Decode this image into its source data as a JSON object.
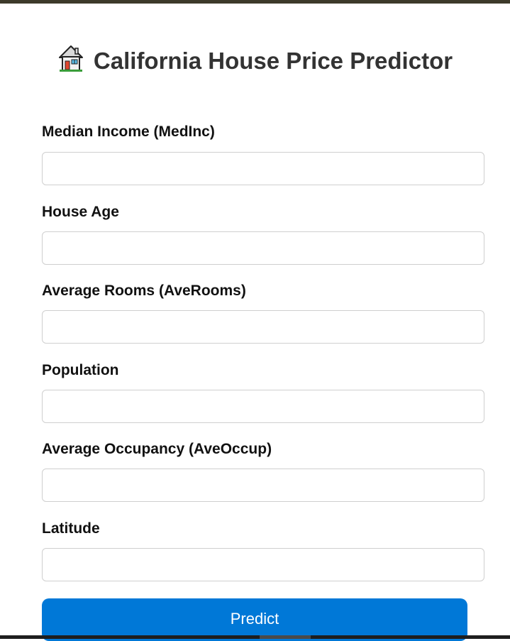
{
  "page": {
    "title": "California House Price Predictor",
    "title_icon": "house-emoji"
  },
  "form": {
    "fields": [
      {
        "label": "Median Income (MedInc)",
        "value": "",
        "placeholder": ""
      },
      {
        "label": "House Age",
        "value": "",
        "placeholder": ""
      },
      {
        "label": "Average Rooms (AveRooms)",
        "value": "",
        "placeholder": ""
      },
      {
        "label": "Population",
        "value": "",
        "placeholder": ""
      },
      {
        "label": "Average Occupancy (AveOccup)",
        "value": "",
        "placeholder": ""
      },
      {
        "label": "Latitude",
        "value": "",
        "placeholder": ""
      }
    ],
    "submit_label": "Predict"
  },
  "colors": {
    "accent": "#0078d7",
    "title_text": "#333333",
    "top_bar": "#3d3a2a"
  }
}
